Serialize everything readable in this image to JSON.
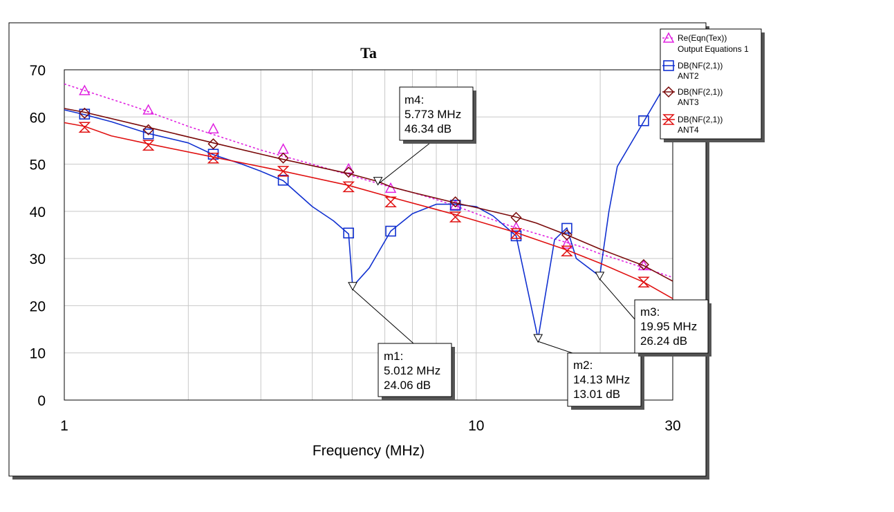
{
  "chart_data": {
    "type": "line",
    "title": "Ta",
    "xlabel": "Frequency (MHz)",
    "ylabel": "",
    "x_scale": "log",
    "xlim": [
      1,
      30
    ],
    "ylim": [
      0,
      70
    ],
    "x_ticks": [
      1,
      10,
      30
    ],
    "x_tick_labels": [
      "1",
      "10",
      "30"
    ],
    "y_ticks": [
      0,
      10,
      20,
      30,
      40,
      50,
      60,
      70
    ],
    "y_tick_labels": [
      "0",
      "10",
      "20",
      "30",
      "40",
      "50",
      "60",
      "70"
    ],
    "x_minor_grid": [
      2,
      3,
      4,
      5,
      6,
      7,
      8,
      9,
      20
    ],
    "grid": true,
    "legend_position": "top-right",
    "series": [
      {
        "name": "Re(Eqn(Tex))",
        "sublabel": "Output Equations 1",
        "color": "#e020e0",
        "dashed": true,
        "marker": "triangle",
        "points": [
          [
            1,
            67.0
          ],
          [
            1.12,
            65.6
          ],
          [
            1.5,
            62.0
          ],
          [
            2,
            58.0
          ],
          [
            3,
            53.0
          ],
          [
            4,
            50.0
          ],
          [
            5,
            47.5
          ],
          [
            6,
            45.5
          ],
          [
            7,
            44.0
          ],
          [
            8,
            42.5
          ],
          [
            9,
            41.0
          ],
          [
            10,
            39.5
          ],
          [
            12,
            37.0
          ],
          [
            15,
            34.5
          ],
          [
            18,
            32.5
          ],
          [
            20,
            31.0
          ],
          [
            25,
            28.3
          ],
          [
            30,
            26.0
          ]
        ],
        "markers": [
          [
            1.12,
            65.6
          ],
          [
            1.6,
            61.5
          ],
          [
            2.3,
            57.5
          ],
          [
            3.4,
            53.2
          ],
          [
            4.9,
            49.0
          ],
          [
            6.2,
            44.9
          ],
          [
            8.9,
            41.3
          ],
          [
            12.5,
            36.6
          ],
          [
            16.6,
            33.1
          ],
          [
            25.5,
            28.5
          ]
        ]
      },
      {
        "name": "DB(NF(2,1))",
        "sublabel": "ANT2",
        "color": "#1030d0",
        "dashed": false,
        "marker": "square",
        "points": [
          [
            1,
            61.5
          ],
          [
            1.12,
            60.5
          ],
          [
            1.3,
            59.0
          ],
          [
            1.6,
            56.5
          ],
          [
            2,
            54.5
          ],
          [
            2.3,
            52.0
          ],
          [
            2.7,
            50.0
          ],
          [
            3,
            48.5
          ],
          [
            3.4,
            46.5
          ],
          [
            4,
            41.0
          ],
          [
            4.5,
            38.0
          ],
          [
            4.9,
            35.2
          ],
          [
            5.012,
            24.06
          ],
          [
            5.5,
            28.0
          ],
          [
            6.2,
            35.8
          ],
          [
            7,
            39.5
          ],
          [
            8,
            41.5
          ],
          [
            8.9,
            41.5
          ],
          [
            10,
            41.0
          ],
          [
            11,
            39.0
          ],
          [
            12.5,
            34.8
          ],
          [
            14.13,
            13.01
          ],
          [
            15.5,
            34.0
          ],
          [
            16.6,
            36.5
          ],
          [
            17.5,
            30.0
          ],
          [
            19.95,
            26.24
          ],
          [
            21,
            40.0
          ],
          [
            22,
            49.5
          ],
          [
            25.5,
            59.0
          ],
          [
            30,
            69.5
          ]
        ],
        "markers": [
          [
            1.12,
            60.6
          ],
          [
            1.6,
            56.4
          ],
          [
            2.3,
            52.1
          ],
          [
            3.4,
            46.6
          ],
          [
            4.9,
            35.4
          ],
          [
            6.2,
            35.8
          ],
          [
            8.9,
            41.3
          ],
          [
            12.5,
            34.8
          ],
          [
            16.6,
            36.4
          ],
          [
            25.5,
            59.2
          ]
        ]
      },
      {
        "name": "DB(NF(2,1))",
        "sublabel": "ANT3",
        "color": "#7a0a0a",
        "dashed": false,
        "marker": "diamond",
        "points": [
          [
            1,
            61.8
          ],
          [
            1.12,
            61.0
          ],
          [
            1.6,
            57.8
          ],
          [
            2.3,
            54.5
          ],
          [
            3.4,
            51.0
          ],
          [
            4.9,
            48.0
          ],
          [
            5.773,
            46.34
          ],
          [
            6.2,
            45.2
          ],
          [
            7,
            44.0
          ],
          [
            8.9,
            41.8
          ],
          [
            10,
            40.8
          ],
          [
            12.5,
            38.8
          ],
          [
            14,
            37.5
          ],
          [
            16.6,
            35.0
          ],
          [
            20,
            32.0
          ],
          [
            25.5,
            28.5
          ],
          [
            30,
            25.2
          ]
        ],
        "markers": [
          [
            1.12,
            60.8
          ],
          [
            1.6,
            57.3
          ],
          [
            2.3,
            54.3
          ],
          [
            3.4,
            51.3
          ],
          [
            4.9,
            48.3
          ],
          [
            8.9,
            42.0
          ],
          [
            12.5,
            38.7
          ],
          [
            16.6,
            35.0
          ],
          [
            25.5,
            28.7
          ]
        ]
      },
      {
        "name": "DB(NF(2,1))",
        "sublabel": "ANT4",
        "color": "#e01010",
        "dashed": false,
        "marker": "hourglass",
        "points": [
          [
            1,
            58.8
          ],
          [
            1.12,
            58.0
          ],
          [
            1.3,
            56.0
          ],
          [
            1.6,
            54.3
          ],
          [
            2.3,
            51.5
          ],
          [
            3.4,
            48.5
          ],
          [
            4.9,
            45.5
          ],
          [
            6.2,
            43.0
          ],
          [
            8.9,
            39.3
          ],
          [
            10,
            38.0
          ],
          [
            12.5,
            35.5
          ],
          [
            14,
            34.0
          ],
          [
            16.6,
            31.8
          ],
          [
            20,
            29.0
          ],
          [
            25.5,
            25.0
          ],
          [
            30,
            21.5
          ]
        ],
        "markers": [
          [
            1.12,
            57.8
          ],
          [
            1.6,
            54.0
          ],
          [
            2.3,
            51.3
          ],
          [
            3.4,
            48.5
          ],
          [
            4.9,
            45.2
          ],
          [
            6.2,
            42.0
          ],
          [
            8.9,
            38.8
          ],
          [
            12.5,
            35.3
          ],
          [
            16.6,
            31.6
          ],
          [
            25.5,
            25.0
          ]
        ]
      }
    ],
    "data_markers": [
      {
        "name": "m1",
        "x": 5.012,
        "y": 24.06,
        "line1": "m1:",
        "line2": "5.012 MHz",
        "line3": "24.06 dB"
      },
      {
        "name": "m2",
        "x": 14.13,
        "y": 13.01,
        "line1": "m2:",
        "line2": "14.13 MHz",
        "line3": "13.01 dB"
      },
      {
        "name": "m3",
        "x": 19.95,
        "y": 26.24,
        "line1": "m3:",
        "line2": "19.95 MHz",
        "line3": "26.24 dB"
      },
      {
        "name": "m4",
        "x": 5.773,
        "y": 46.34,
        "line1": "m4:",
        "line2": "5.773 MHz",
        "line3": "46.34 dB"
      }
    ]
  }
}
